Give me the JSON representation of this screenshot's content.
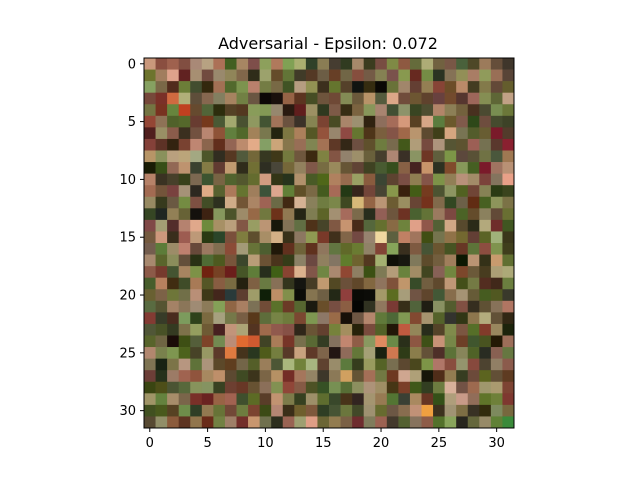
{
  "chart_data": {
    "type": "heatmap",
    "title": "Adversarial - Epsilon: 0.072",
    "xlabel": "",
    "ylabel": "",
    "image_size": [
      32,
      32
    ],
    "xlim": [
      -0.5,
      31.5
    ],
    "ylim": [
      31.5,
      -0.5
    ],
    "xticks": [
      0,
      5,
      10,
      15,
      20,
      25,
      30
    ],
    "yticks": [
      0,
      5,
      10,
      15,
      20,
      25,
      30
    ],
    "grid": false,
    "pixel_source": "seeded-reconstruction",
    "palette": [
      "#4a3a24",
      "#6b5a3a",
      "#7a6a42",
      "#5a6a2e",
      "#8a7a5a",
      "#3a3a22",
      "#9a6a52",
      "#6a4a34",
      "#7a8a4a",
      "#a08a6a",
      "#5a3a2a",
      "#2a2a1a",
      "#8a5a4a",
      "#6a7a3a",
      "#b08a6a",
      "#4a5a2a",
      "#9a9a6a",
      "#7a3a2a",
      "#c89a7a",
      "#3a4a2a"
    ],
    "accents": [
      {
        "row": 2,
        "col": 20,
        "color": "#0a0805"
      },
      {
        "row": 3,
        "col": 10,
        "color": "#0c0806"
      },
      {
        "row": 3,
        "col": 11,
        "color": "#1a100c"
      },
      {
        "row": 4,
        "col": 12,
        "color": "#2a1a10"
      },
      {
        "row": 4,
        "col": 3,
        "color": "#c04020"
      },
      {
        "row": 3,
        "col": 2,
        "color": "#d06a40"
      },
      {
        "row": 6,
        "col": 30,
        "color": "#7a1a2a"
      },
      {
        "row": 7,
        "col": 31,
        "color": "#8a2030"
      },
      {
        "row": 9,
        "col": 29,
        "color": "#7a1a2a"
      },
      {
        "row": 10,
        "col": 31,
        "color": "#e8a088"
      },
      {
        "row": 12,
        "col": 18,
        "color": "#d6b878"
      },
      {
        "row": 15,
        "col": 20,
        "color": "#f0d8a0"
      },
      {
        "row": 14,
        "col": 23,
        "color": "#e0a088"
      },
      {
        "row": 17,
        "col": 21,
        "color": "#101008"
      },
      {
        "row": 17,
        "col": 22,
        "color": "#181810"
      },
      {
        "row": 19,
        "col": 13,
        "color": "#151510"
      },
      {
        "row": 20,
        "col": 13,
        "color": "#0c0c08"
      },
      {
        "row": 20,
        "col": 18,
        "color": "#0a0a06"
      },
      {
        "row": 20,
        "col": 19,
        "color": "#0c0c08"
      },
      {
        "row": 21,
        "col": 18,
        "color": "#050503"
      },
      {
        "row": 21,
        "col": 14,
        "color": "#1a1a10"
      },
      {
        "row": 22,
        "col": 17,
        "color": "#181008"
      },
      {
        "row": 20,
        "col": 7,
        "color": "#2a3a3a"
      },
      {
        "row": 24,
        "col": 2,
        "color": "#1a0c08"
      },
      {
        "row": 24,
        "col": 8,
        "color": "#e06a30"
      },
      {
        "row": 24,
        "col": 9,
        "color": "#d05a30"
      },
      {
        "row": 25,
        "col": 7,
        "color": "#e07a40"
      },
      {
        "row": 24,
        "col": 20,
        "color": "#e08a60"
      },
      {
        "row": 25,
        "col": 21,
        "color": "#d07850"
      },
      {
        "row": 23,
        "col": 22,
        "color": "#c05a40"
      },
      {
        "row": 27,
        "col": 17,
        "color": "#d0a060"
      },
      {
        "row": 29,
        "col": 27,
        "color": "#c89a88"
      },
      {
        "row": 28,
        "col": 26,
        "color": "#d8b09a"
      },
      {
        "row": 30,
        "col": 24,
        "color": "#f0a040"
      },
      {
        "row": 31,
        "col": 31,
        "color": "#3a8a3a"
      }
    ]
  }
}
